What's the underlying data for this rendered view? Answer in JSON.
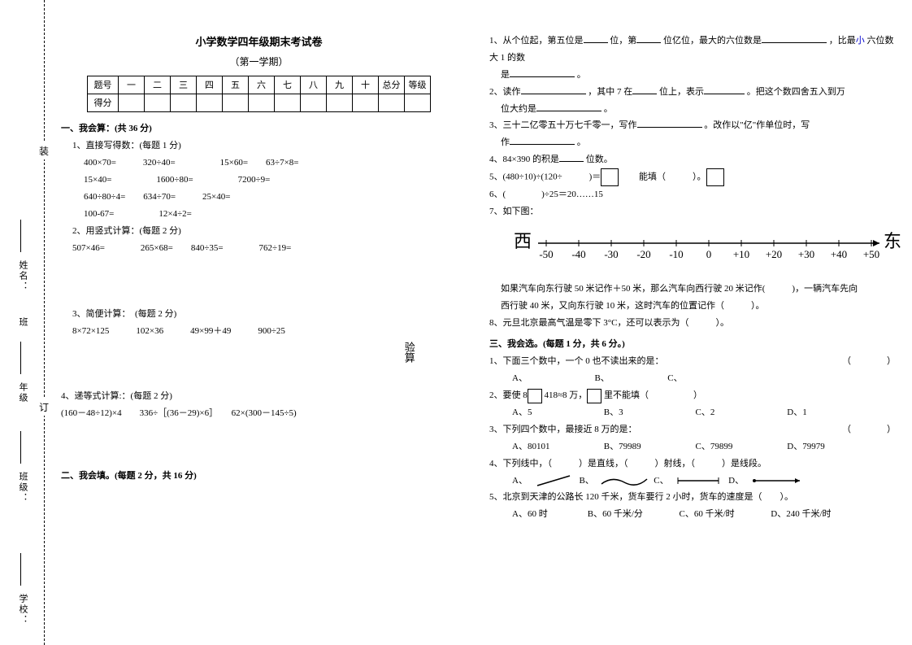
{
  "binding": {
    "labels": [
      "学校：",
      "班级：",
      "年级",
      "班",
      "姓名："
    ],
    "chars": [
      "装",
      "订"
    ]
  },
  "header": {
    "title": "小学数学四年级期末考试卷",
    "subtitle": "（第一学期）",
    "row1": [
      "题号",
      "一",
      "二",
      "三",
      "四",
      "五",
      "六",
      "七",
      "八",
      "九",
      "十",
      "总分",
      "等级"
    ],
    "row2_label": "得分"
  },
  "sec1": {
    "title": "一、我会算：(共 36 分)",
    "q1": {
      "title": "1、直接写得数：(每题 1 分)",
      "lines": [
        "400×70=　　　320÷40=　　　　　15×60=　　63÷7×8=",
        "15×40=　　　　　1600÷80=　　　　　7200÷9=",
        "640÷80÷4=　　634÷70=　　　25×40=",
        "100-67=　　　　　12×4÷2="
      ]
    },
    "q2": {
      "title": "2、用竖式计算：(每题 2 分)",
      "line": "507×46=　　　　265×68=　　840÷35=　　　　762÷19=",
      "verify": "验算"
    },
    "q3": {
      "title": "3、简便计算：　(每题 2 分)",
      "line": "8×72×125　　　102×36　　　49×99＋49　　　900÷25"
    },
    "q4": {
      "title": "4、递等式计算:：(每题 2 分)",
      "line": "(160－48÷12)×4　　336÷［(36－29)×6］　　62×(300－145÷5)"
    }
  },
  "sec2": {
    "title": "二、我会填。(每题 2 分，共 16 分)",
    "q1_a": "1、从个位起，第五位是",
    "q1_b": "位，第",
    "q1_c": "位亿位，最大的六位数是",
    "q1_d": "，比最",
    "q1_e": "小",
    "q1_f": "六位数大 1 的数",
    "q1_g": "是",
    "q1_h": "。",
    "q2_a": "2、读作",
    "q2_b": "，其中 7 在",
    "q2_c": "位上，表示",
    "q2_d": "。把这个数四舍五入到万",
    "q2_e": "位大约是",
    "q2_f": "。",
    "q3_a": "3、三十二亿零五十万七千零一，写作",
    "q3_b": "。改作以\"亿\"作单位时，写",
    "q3_c": "作",
    "q3_d": "。",
    "q4_a": "4、84×390 的积是",
    "q4_b": "位数。",
    "q5_a": "5、(480÷10)÷(120÷　　　)＝",
    "q5_b": "　　能填（　　　）。",
    "q6": "6、(　　　　)÷25＝20……15",
    "q7": "7、如下图：",
    "nl_west": "西",
    "nl_east": "东",
    "nl_ticks": [
      "-50",
      "-40",
      "-30",
      "-20",
      "-10",
      "0",
      "+10",
      "+20",
      "+30",
      "+40",
      "+50"
    ],
    "q7_line1": "如果汽车向东行驶 50 米记作＋50 米，那么汽车向西行驶 20 米记作(　　　)，一辆汽车先向",
    "q7_line2": "西行驶 40 米，又向东行驶 10 米，这时汽车的位置记作（　　　）。",
    "q8": "8、元旦北京最高气温是零下 3°C，还可以表示为（　　　）。"
  },
  "sec3": {
    "title": "三、我会选。(每题 1 分，共 6 分。)",
    "q1": "1、下面三个数中，一个 0 也不读出来的是：",
    "q1_opts": "A、　　　　　　　　B、　　　　　　　C、",
    "q2_a": "2、要使 8",
    "q2_b": "418≈8 万，",
    "q2_c": "里不能填（　　　　　）",
    "q2_opts": [
      "A、5",
      "B、3",
      "C、2",
      "D、1"
    ],
    "q3": "3、下列四个数中，最接近 8 万的是：",
    "q3_opts": [
      "A、80101",
      "B、79989",
      "C、79899",
      "D、79979"
    ],
    "q4": "4、下列线中，（　　　）是直线，（　　　）射线，（　　　）是线段。",
    "q4_labels": [
      "A、",
      "B、",
      "C、",
      "D、"
    ],
    "q5": "5、北京到天津的公路长 120 千米，货车要行 2 小时，货车的速度是（　　）。",
    "q5_opts": [
      "A、60 时",
      "B、60 千米/分",
      "C、60 千米/时",
      "D、240 千米/时"
    ],
    "paren": "（　　　　）"
  },
  "style": {
    "bg": "#ffffff",
    "text": "#000000",
    "link_blue": "#0000cc",
    "fontsize": 11
  }
}
